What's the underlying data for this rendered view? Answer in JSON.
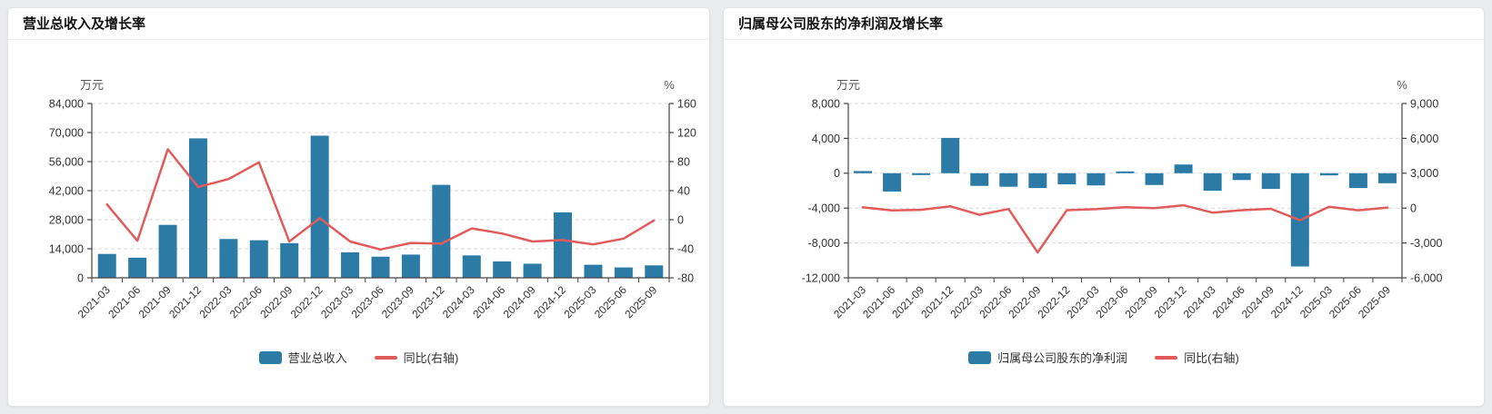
{
  "colors": {
    "bar": "#2b7ba6",
    "line": "#e15b5b",
    "grid": "#d9d9d9",
    "axis": "#444444",
    "tick_text": "#333333",
    "unit_text": "#595959"
  },
  "chart_data": [
    {
      "type": "bar+line",
      "title": "营业总收入及增长率",
      "categories": [
        "2021-03",
        "2021-06",
        "2021-09",
        "2021-12",
        "2022-03",
        "2022-06",
        "2022-09",
        "2022-12",
        "2023-03",
        "2023-06",
        "2023-09",
        "2023-12",
        "2024-03",
        "2024-06",
        "2024-09",
        "2024-12",
        "2025-03",
        "2025-06",
        "2025-09"
      ],
      "series": [
        {
          "name": "营业总收入",
          "type": "bar",
          "axis": "left",
          "values": [
            11500,
            9700,
            25500,
            67200,
            18700,
            18100,
            16700,
            68500,
            12300,
            10200,
            11200,
            44800,
            10800,
            7900,
            6800,
            31500,
            6300,
            5000,
            6000
          ]
        },
        {
          "name": "同比(右轴)",
          "type": "line",
          "axis": "right",
          "values": [
            21,
            -29,
            97,
            45,
            56,
            79,
            -30,
            2,
            -30,
            -41,
            -32,
            -33,
            -12,
            -19,
            -30,
            -28,
            -34,
            -26,
            -1
          ]
        }
      ],
      "left_axis": {
        "unit": "万元",
        "min": 0,
        "max": 84000,
        "ticks": [
          84000,
          70000,
          56000,
          42000,
          28000,
          14000,
          0
        ]
      },
      "right_axis": {
        "unit": "%",
        "min": -80,
        "max": 160,
        "ticks": [
          160,
          120,
          80,
          40,
          0,
          -40,
          -80
        ]
      },
      "grid": "dashed-horizontal",
      "legend_position": "bottom-center"
    },
    {
      "type": "bar+line",
      "title": "归属母公司股东的净利润及增长率",
      "categories": [
        "2021-03",
        "2021-06",
        "2021-09",
        "2021-12",
        "2022-03",
        "2022-06",
        "2022-09",
        "2022-12",
        "2023-03",
        "2023-06",
        "2023-09",
        "2023-12",
        "2024-03",
        "2024-06",
        "2024-09",
        "2024-12",
        "2025-03",
        "2025-06",
        "2025-09"
      ],
      "series": [
        {
          "name": "归属母公司股东的净利润",
          "type": "bar",
          "axis": "left",
          "values": [
            250,
            -2100,
            -100,
            4050,
            -1450,
            -1550,
            -1700,
            -1270,
            -1400,
            150,
            -1350,
            1000,
            -2000,
            -780,
            -1800,
            -10700,
            -250,
            -1700,
            -1150
          ]
        },
        {
          "name": "同比(右轴)",
          "type": "line",
          "axis": "right",
          "values": [
            60,
            -200,
            -150,
            160,
            -580,
            -80,
            -3820,
            -180,
            -90,
            70,
            -10,
            240,
            -390,
            -180,
            -60,
            -1050,
            120,
            -190,
            40
          ]
        }
      ],
      "left_axis": {
        "unit": "万元",
        "min": -12000,
        "max": 8000,
        "ticks": [
          8000,
          4000,
          0,
          -4000,
          -8000,
          -12000
        ]
      },
      "right_axis": {
        "unit": "%",
        "min": -6000,
        "max": 9000,
        "ticks": [
          9000,
          6000,
          3000,
          0,
          -3000,
          -6000
        ]
      },
      "grid": "dashed-horizontal",
      "legend_position": "bottom-center"
    }
  ]
}
